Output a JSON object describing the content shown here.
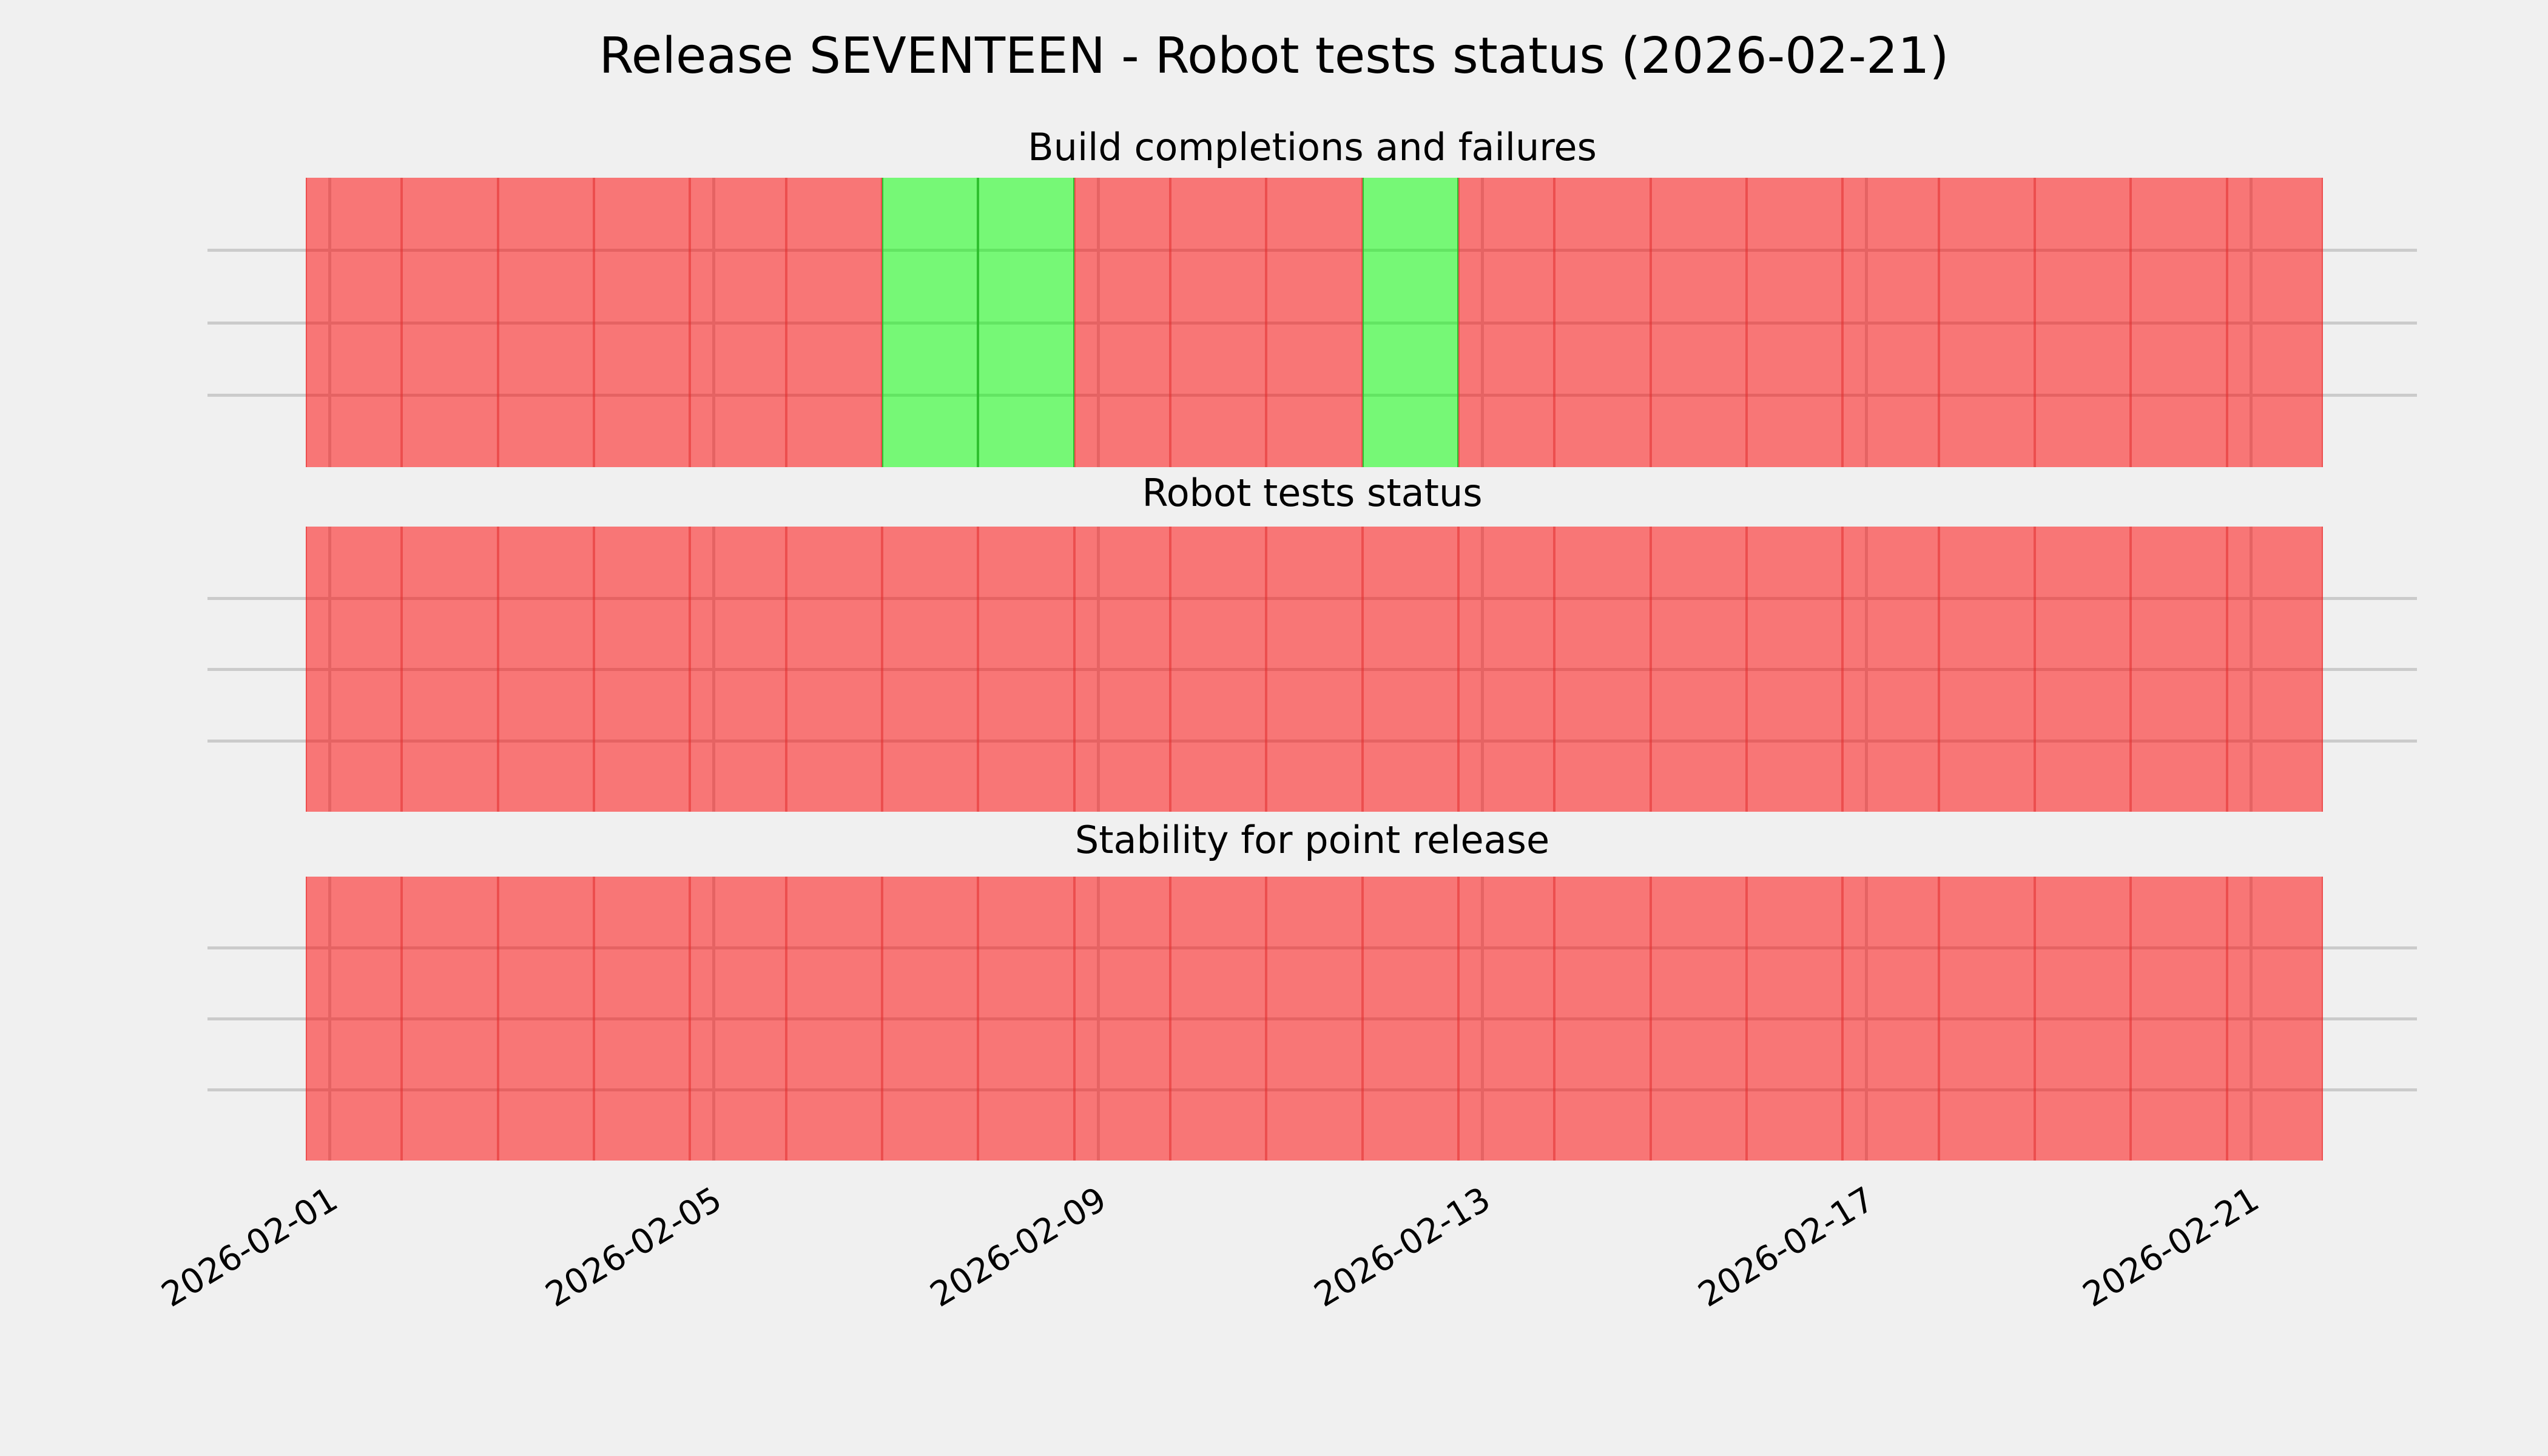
{
  "figure": {
    "title": "Release SEVENTEEN - Robot tests status (2026-02-21)",
    "background_color": "#f0f0f0",
    "text_color": "#000000"
  },
  "colors": {
    "fail_fill": "#f86e6e",
    "pass_fill": "#70f470",
    "fail_edge": "#e13c3c",
    "pass_edge": "#2eb82e",
    "gridline": "#cbcbcb"
  },
  "x_ticks": [
    "2026-02-01",
    "2026-02-05",
    "2026-02-09",
    "2026-02-13",
    "2026-02-17",
    "2026-02-21"
  ],
  "chart_data": [
    {
      "type": "bar",
      "title": "Build completions and failures",
      "xlabel": "",
      "ylabel": "",
      "ylim": [
        0,
        1
      ],
      "grid": true,
      "bar_width_days": 1,
      "x": [
        "2026-02-01",
        "2026-02-02",
        "2026-02-03",
        "2026-02-04",
        "2026-02-05",
        "2026-02-06",
        "2026-02-07",
        "2026-02-08",
        "2026-02-09",
        "2026-02-10",
        "2026-02-11",
        "2026-02-12",
        "2026-02-13",
        "2026-02-14",
        "2026-02-15",
        "2026-02-16",
        "2026-02-17",
        "2026-02-18",
        "2026-02-19",
        "2026-02-20",
        "2026-02-21"
      ],
      "values": [
        1,
        1,
        1,
        1,
        1,
        1,
        1,
        1,
        1,
        1,
        1,
        1,
        1,
        1,
        1,
        1,
        1,
        1,
        1,
        1,
        1
      ],
      "status": [
        "fail",
        "fail",
        "fail",
        "fail",
        "fail",
        "fail",
        "pass",
        "pass",
        "fail",
        "fail",
        "fail",
        "pass",
        "fail",
        "fail",
        "fail",
        "fail",
        "fail",
        "fail",
        "fail",
        "fail",
        "fail"
      ]
    },
    {
      "type": "bar",
      "title": "Robot tests status",
      "xlabel": "",
      "ylabel": "",
      "ylim": [
        0,
        1
      ],
      "grid": true,
      "bar_width_days": 1,
      "x": [
        "2026-02-01",
        "2026-02-02",
        "2026-02-03",
        "2026-02-04",
        "2026-02-05",
        "2026-02-06",
        "2026-02-07",
        "2026-02-08",
        "2026-02-09",
        "2026-02-10",
        "2026-02-11",
        "2026-02-12",
        "2026-02-13",
        "2026-02-14",
        "2026-02-15",
        "2026-02-16",
        "2026-02-17",
        "2026-02-18",
        "2026-02-19",
        "2026-02-20",
        "2026-02-21"
      ],
      "values": [
        1,
        1,
        1,
        1,
        1,
        1,
        1,
        1,
        1,
        1,
        1,
        1,
        1,
        1,
        1,
        1,
        1,
        1,
        1,
        1,
        1
      ],
      "status": [
        "fail",
        "fail",
        "fail",
        "fail",
        "fail",
        "fail",
        "fail",
        "fail",
        "fail",
        "fail",
        "fail",
        "fail",
        "fail",
        "fail",
        "fail",
        "fail",
        "fail",
        "fail",
        "fail",
        "fail",
        "fail"
      ]
    },
    {
      "type": "bar",
      "title": "Stability for point release",
      "xlabel": "",
      "ylabel": "",
      "ylim": [
        0,
        1
      ],
      "grid": true,
      "bar_width_days": 1,
      "x": [
        "2026-02-01",
        "2026-02-02",
        "2026-02-03",
        "2026-02-04",
        "2026-02-05",
        "2026-02-06",
        "2026-02-07",
        "2026-02-08",
        "2026-02-09",
        "2026-02-10",
        "2026-02-11",
        "2026-02-12",
        "2026-02-13",
        "2026-02-14",
        "2026-02-15",
        "2026-02-16",
        "2026-02-17",
        "2026-02-18",
        "2026-02-19",
        "2026-02-20",
        "2026-02-21"
      ],
      "values": [
        1,
        1,
        1,
        1,
        1,
        1,
        1,
        1,
        1,
        1,
        1,
        1,
        1,
        1,
        1,
        1,
        1,
        1,
        1,
        1,
        1
      ],
      "status": [
        "fail",
        "fail",
        "fail",
        "fail",
        "fail",
        "fail",
        "fail",
        "fail",
        "fail",
        "fail",
        "fail",
        "fail",
        "fail",
        "fail",
        "fail",
        "fail",
        "fail",
        "fail",
        "fail",
        "fail",
        "fail"
      ]
    }
  ]
}
